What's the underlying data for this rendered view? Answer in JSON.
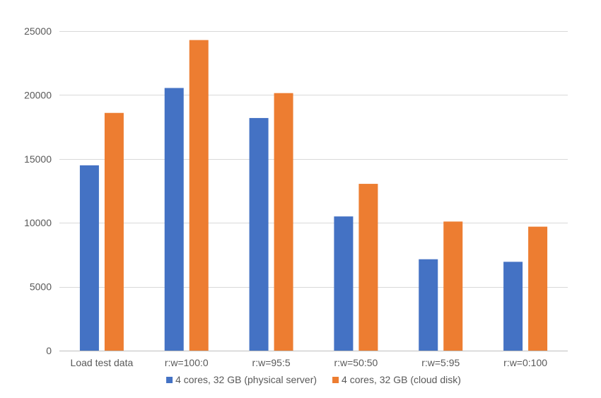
{
  "chart_data": {
    "type": "bar",
    "title": "",
    "xlabel": "",
    "ylabel": "",
    "categories": [
      "Load test data",
      "r:w=100:0",
      "r:w=95:5",
      "r:w=50:50",
      "r:w=5:95",
      "r:w=0:100"
    ],
    "ylim": [
      0,
      25000
    ],
    "yticks": [
      0,
      5000,
      10000,
      15000,
      20000,
      25000
    ],
    "grid": true,
    "legend_position": "bottom",
    "series": [
      {
        "name": "4 cores, 32 GB (physical server)",
        "color": "#4472C4",
        "values": [
          14500,
          20550,
          18200,
          10500,
          7150,
          6950
        ]
      },
      {
        "name": "4 cores, 32 GB (cloud disk)",
        "color": "#ED7D31",
        "values": [
          18600,
          24300,
          20150,
          13050,
          10100,
          9700
        ]
      }
    ]
  }
}
